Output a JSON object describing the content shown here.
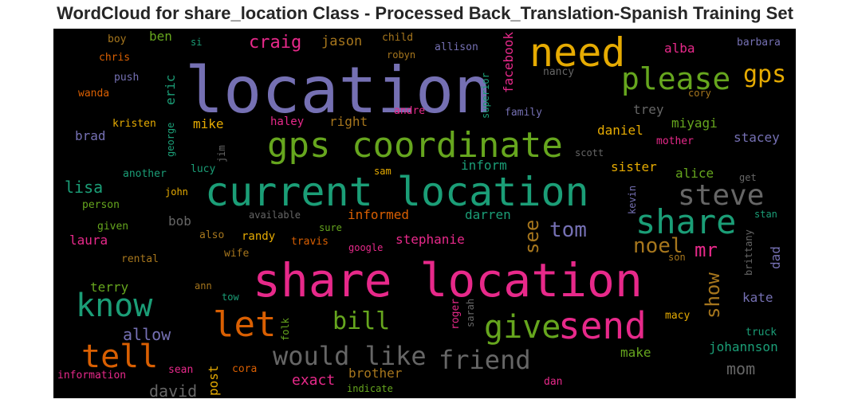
{
  "title": "WordCloud for share_location Class - Processed Back_Translation-Spanish Training Set",
  "chart_data": {
    "type": "wordcloud",
    "background": "#000000",
    "colormap": [
      "#1b9e77",
      "#d95f02",
      "#7570b3",
      "#e7298a",
      "#66a61e",
      "#e6ab02",
      "#a6761d",
      "#666666"
    ],
    "words": [
      {
        "text": "location",
        "color": "#7570b3"
      },
      {
        "text": "need",
        "color": "#e6ab02"
      },
      {
        "text": "please",
        "color": "#66a61e"
      },
      {
        "text": "gps",
        "color": "#e6ab02"
      },
      {
        "text": "gps coordinate",
        "color": "#66a61e"
      },
      {
        "text": "current location",
        "color": "#1b9e77"
      },
      {
        "text": "steve",
        "color": "#666666"
      },
      {
        "text": "share",
        "color": "#1b9e77"
      },
      {
        "text": "share location",
        "color": "#e7298a"
      },
      {
        "text": "know",
        "color": "#1b9e77"
      },
      {
        "text": "let",
        "color": "#d95f02"
      },
      {
        "text": "tell",
        "color": "#d95f02"
      },
      {
        "text": "send",
        "color": "#e7298a"
      },
      {
        "text": "give",
        "color": "#66a61e"
      },
      {
        "text": "bill",
        "color": "#66a61e"
      },
      {
        "text": "would like",
        "color": "#666666"
      },
      {
        "text": "friend",
        "color": "#666666"
      },
      {
        "text": "tom",
        "color": "#7570b3"
      },
      {
        "text": "noel",
        "color": "#a6761d"
      },
      {
        "text": "mr",
        "color": "#e7298a"
      },
      {
        "text": "see",
        "color": "#a6761d"
      },
      {
        "text": "show",
        "color": "#a6761d"
      },
      {
        "text": "craig",
        "color": "#e7298a"
      },
      {
        "text": "jason",
        "color": "#a6761d"
      },
      {
        "text": "facebook",
        "color": "#e7298a"
      },
      {
        "text": "ben",
        "color": "#66a61e"
      },
      {
        "text": "child",
        "color": "#a6761d"
      },
      {
        "text": "allison",
        "color": "#7570b3"
      },
      {
        "text": "alba",
        "color": "#e7298a"
      },
      {
        "text": "barbara",
        "color": "#7570b3"
      },
      {
        "text": "boy",
        "color": "#a6761d"
      },
      {
        "text": "si",
        "color": "#1b9e77"
      },
      {
        "text": "robyn",
        "color": "#a6761d"
      },
      {
        "text": "chris",
        "color": "#d95f02"
      },
      {
        "text": "nancy",
        "color": "#666666"
      },
      {
        "text": "push",
        "color": "#7570b3"
      },
      {
        "text": "eric",
        "color": "#1b9e77"
      },
      {
        "text": "superior",
        "color": "#1b9e77"
      },
      {
        "text": "wanda",
        "color": "#d95f02"
      },
      {
        "text": "cory",
        "color": "#a6761d"
      },
      {
        "text": "trey",
        "color": "#666666"
      },
      {
        "text": "andre",
        "color": "#e7298a"
      },
      {
        "text": "family",
        "color": "#7570b3"
      },
      {
        "text": "miyagi",
        "color": "#66a61e"
      },
      {
        "text": "kristen",
        "color": "#e6ab02"
      },
      {
        "text": "mike",
        "color": "#e6ab02"
      },
      {
        "text": "haley",
        "color": "#e7298a"
      },
      {
        "text": "right",
        "color": "#a6761d"
      },
      {
        "text": "daniel",
        "color": "#e6ab02"
      },
      {
        "text": "brad",
        "color": "#7570b3"
      },
      {
        "text": "george",
        "color": "#1b9e77"
      },
      {
        "text": "jim",
        "color": "#666666"
      },
      {
        "text": "mother",
        "color": "#e7298a"
      },
      {
        "text": "stacey",
        "color": "#7570b3"
      },
      {
        "text": "scott",
        "color": "#666666"
      },
      {
        "text": "another",
        "color": "#1b9e77"
      },
      {
        "text": "lucy",
        "color": "#1b9e77"
      },
      {
        "text": "sam",
        "color": "#e6ab02"
      },
      {
        "text": "inform",
        "color": "#1b9e77"
      },
      {
        "text": "sister",
        "color": "#e6ab02"
      },
      {
        "text": "alice",
        "color": "#66a61e"
      },
      {
        "text": "get",
        "color": "#666666"
      },
      {
        "text": "lisa",
        "color": "#1b9e77"
      },
      {
        "text": "john",
        "color": "#e6ab02"
      },
      {
        "text": "kevin",
        "color": "#7570b3"
      },
      {
        "text": "person",
        "color": "#66a61e"
      },
      {
        "text": "available",
        "color": "#666666"
      },
      {
        "text": "informed",
        "color": "#d95f02"
      },
      {
        "text": "darren",
        "color": "#1b9e77"
      },
      {
        "text": "stan",
        "color": "#1b9e77"
      },
      {
        "text": "bob",
        "color": "#666666"
      },
      {
        "text": "given",
        "color": "#66a61e"
      },
      {
        "text": "sure",
        "color": "#66a61e"
      },
      {
        "text": "brittany",
        "color": "#666666"
      },
      {
        "text": "also",
        "color": "#a6761d"
      },
      {
        "text": "randy",
        "color": "#e6ab02"
      },
      {
        "text": "travis",
        "color": "#d95f02"
      },
      {
        "text": "stephanie",
        "color": "#e7298a"
      },
      {
        "text": "laura",
        "color": "#e7298a"
      },
      {
        "text": "google",
        "color": "#e7298a"
      },
      {
        "text": "wife",
        "color": "#a6761d"
      },
      {
        "text": "rental",
        "color": "#a6761d"
      },
      {
        "text": "son",
        "color": "#a6761d"
      },
      {
        "text": "dad",
        "color": "#7570b3"
      },
      {
        "text": "terry",
        "color": "#66a61e"
      },
      {
        "text": "ann",
        "color": "#a6761d"
      },
      {
        "text": "kate",
        "color": "#7570b3"
      },
      {
        "text": "tow",
        "color": "#1b9e77"
      },
      {
        "text": "roger",
        "color": "#e7298a"
      },
      {
        "text": "sarah",
        "color": "#666666"
      },
      {
        "text": "macy",
        "color": "#e6ab02"
      },
      {
        "text": "allow",
        "color": "#7570b3"
      },
      {
        "text": "folk",
        "color": "#66a61e"
      },
      {
        "text": "truck",
        "color": "#1b9e77"
      },
      {
        "text": "make",
        "color": "#66a61e"
      },
      {
        "text": "johannson",
        "color": "#1b9e77"
      },
      {
        "text": "post",
        "color": "#e6ab02"
      },
      {
        "text": "brother",
        "color": "#a6761d"
      },
      {
        "text": "mom",
        "color": "#666666"
      },
      {
        "text": "sean",
        "color": "#e7298a"
      },
      {
        "text": "cora",
        "color": "#d95f02"
      },
      {
        "text": "exact",
        "color": "#e7298a"
      },
      {
        "text": "information",
        "color": "#e7298a"
      },
      {
        "text": "indicate",
        "color": "#66a61e"
      },
      {
        "text": "dan",
        "color": "#e7298a"
      },
      {
        "text": "david",
        "color": "#666666"
      }
    ]
  }
}
